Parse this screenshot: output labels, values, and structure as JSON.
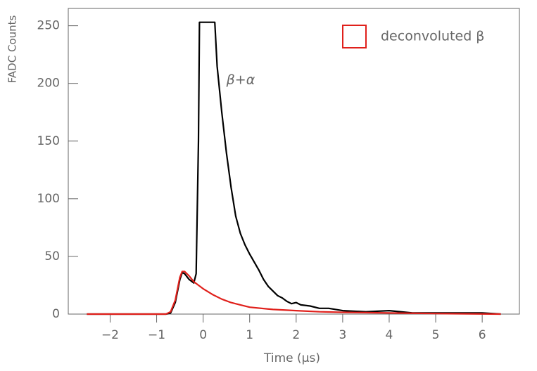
{
  "chart_data": {
    "type": "line",
    "xlabel": "Time (μs)",
    "ylabel": "FADC Counts",
    "xlim": [
      -2.9,
      6.8
    ],
    "ylim": [
      0,
      265
    ],
    "xticks": [
      {
        "value": -2,
        "label": "−2"
      },
      {
        "value": -1,
        "label": "−1"
      },
      0,
      1,
      2,
      3,
      4,
      5,
      6
    ],
    "yticks": [
      0,
      50,
      100,
      150,
      200,
      250
    ],
    "legend_position": "upper right",
    "annotations": [
      {
        "text": "β+α",
        "x": 0.5,
        "y": 203
      }
    ],
    "series": [
      {
        "color": "#000000",
        "x": [
          -2.5,
          -0.8,
          -0.7,
          -0.6,
          -0.5,
          -0.45,
          -0.4,
          -0.3,
          -0.2,
          -0.15,
          -0.1,
          -0.08,
          0.25,
          0.3,
          0.4,
          0.5,
          0.6,
          0.7,
          0.8,
          0.9,
          1.0,
          1.1,
          1.2,
          1.3,
          1.4,
          1.5,
          1.6,
          1.7,
          1.8,
          1.9,
          2.0,
          2.1,
          2.3,
          2.5,
          2.7,
          3.0,
          3.5,
          4.0,
          4.5,
          5.0,
          5.5,
          6.0,
          6.4
        ],
        "values": [
          0,
          0,
          1,
          10,
          30,
          36,
          35,
          30,
          27,
          35,
          150,
          253,
          253,
          215,
          175,
          140,
          110,
          85,
          70,
          60,
          52,
          45,
          38,
          30,
          24,
          20,
          16,
          14,
          11,
          9,
          10,
          8,
          7,
          5,
          5,
          3,
          2,
          3,
          1,
          1,
          1,
          1,
          0
        ]
      },
      {
        "name": "deconvoluted β",
        "color": "#e0201b",
        "x": [
          -2.5,
          -0.8,
          -0.7,
          -0.6,
          -0.5,
          -0.45,
          -0.4,
          -0.3,
          -0.2,
          0,
          0.2,
          0.4,
          0.6,
          0.8,
          1.0,
          1.5,
          2.0,
          2.5,
          3.0,
          4.0,
          5.0,
          6.4
        ],
        "values": [
          0,
          0,
          2,
          12,
          32,
          37,
          37,
          33,
          28,
          22,
          17,
          13,
          10,
          8,
          6,
          4,
          3,
          2,
          1.5,
          1,
          0.5,
          0
        ]
      }
    ]
  }
}
